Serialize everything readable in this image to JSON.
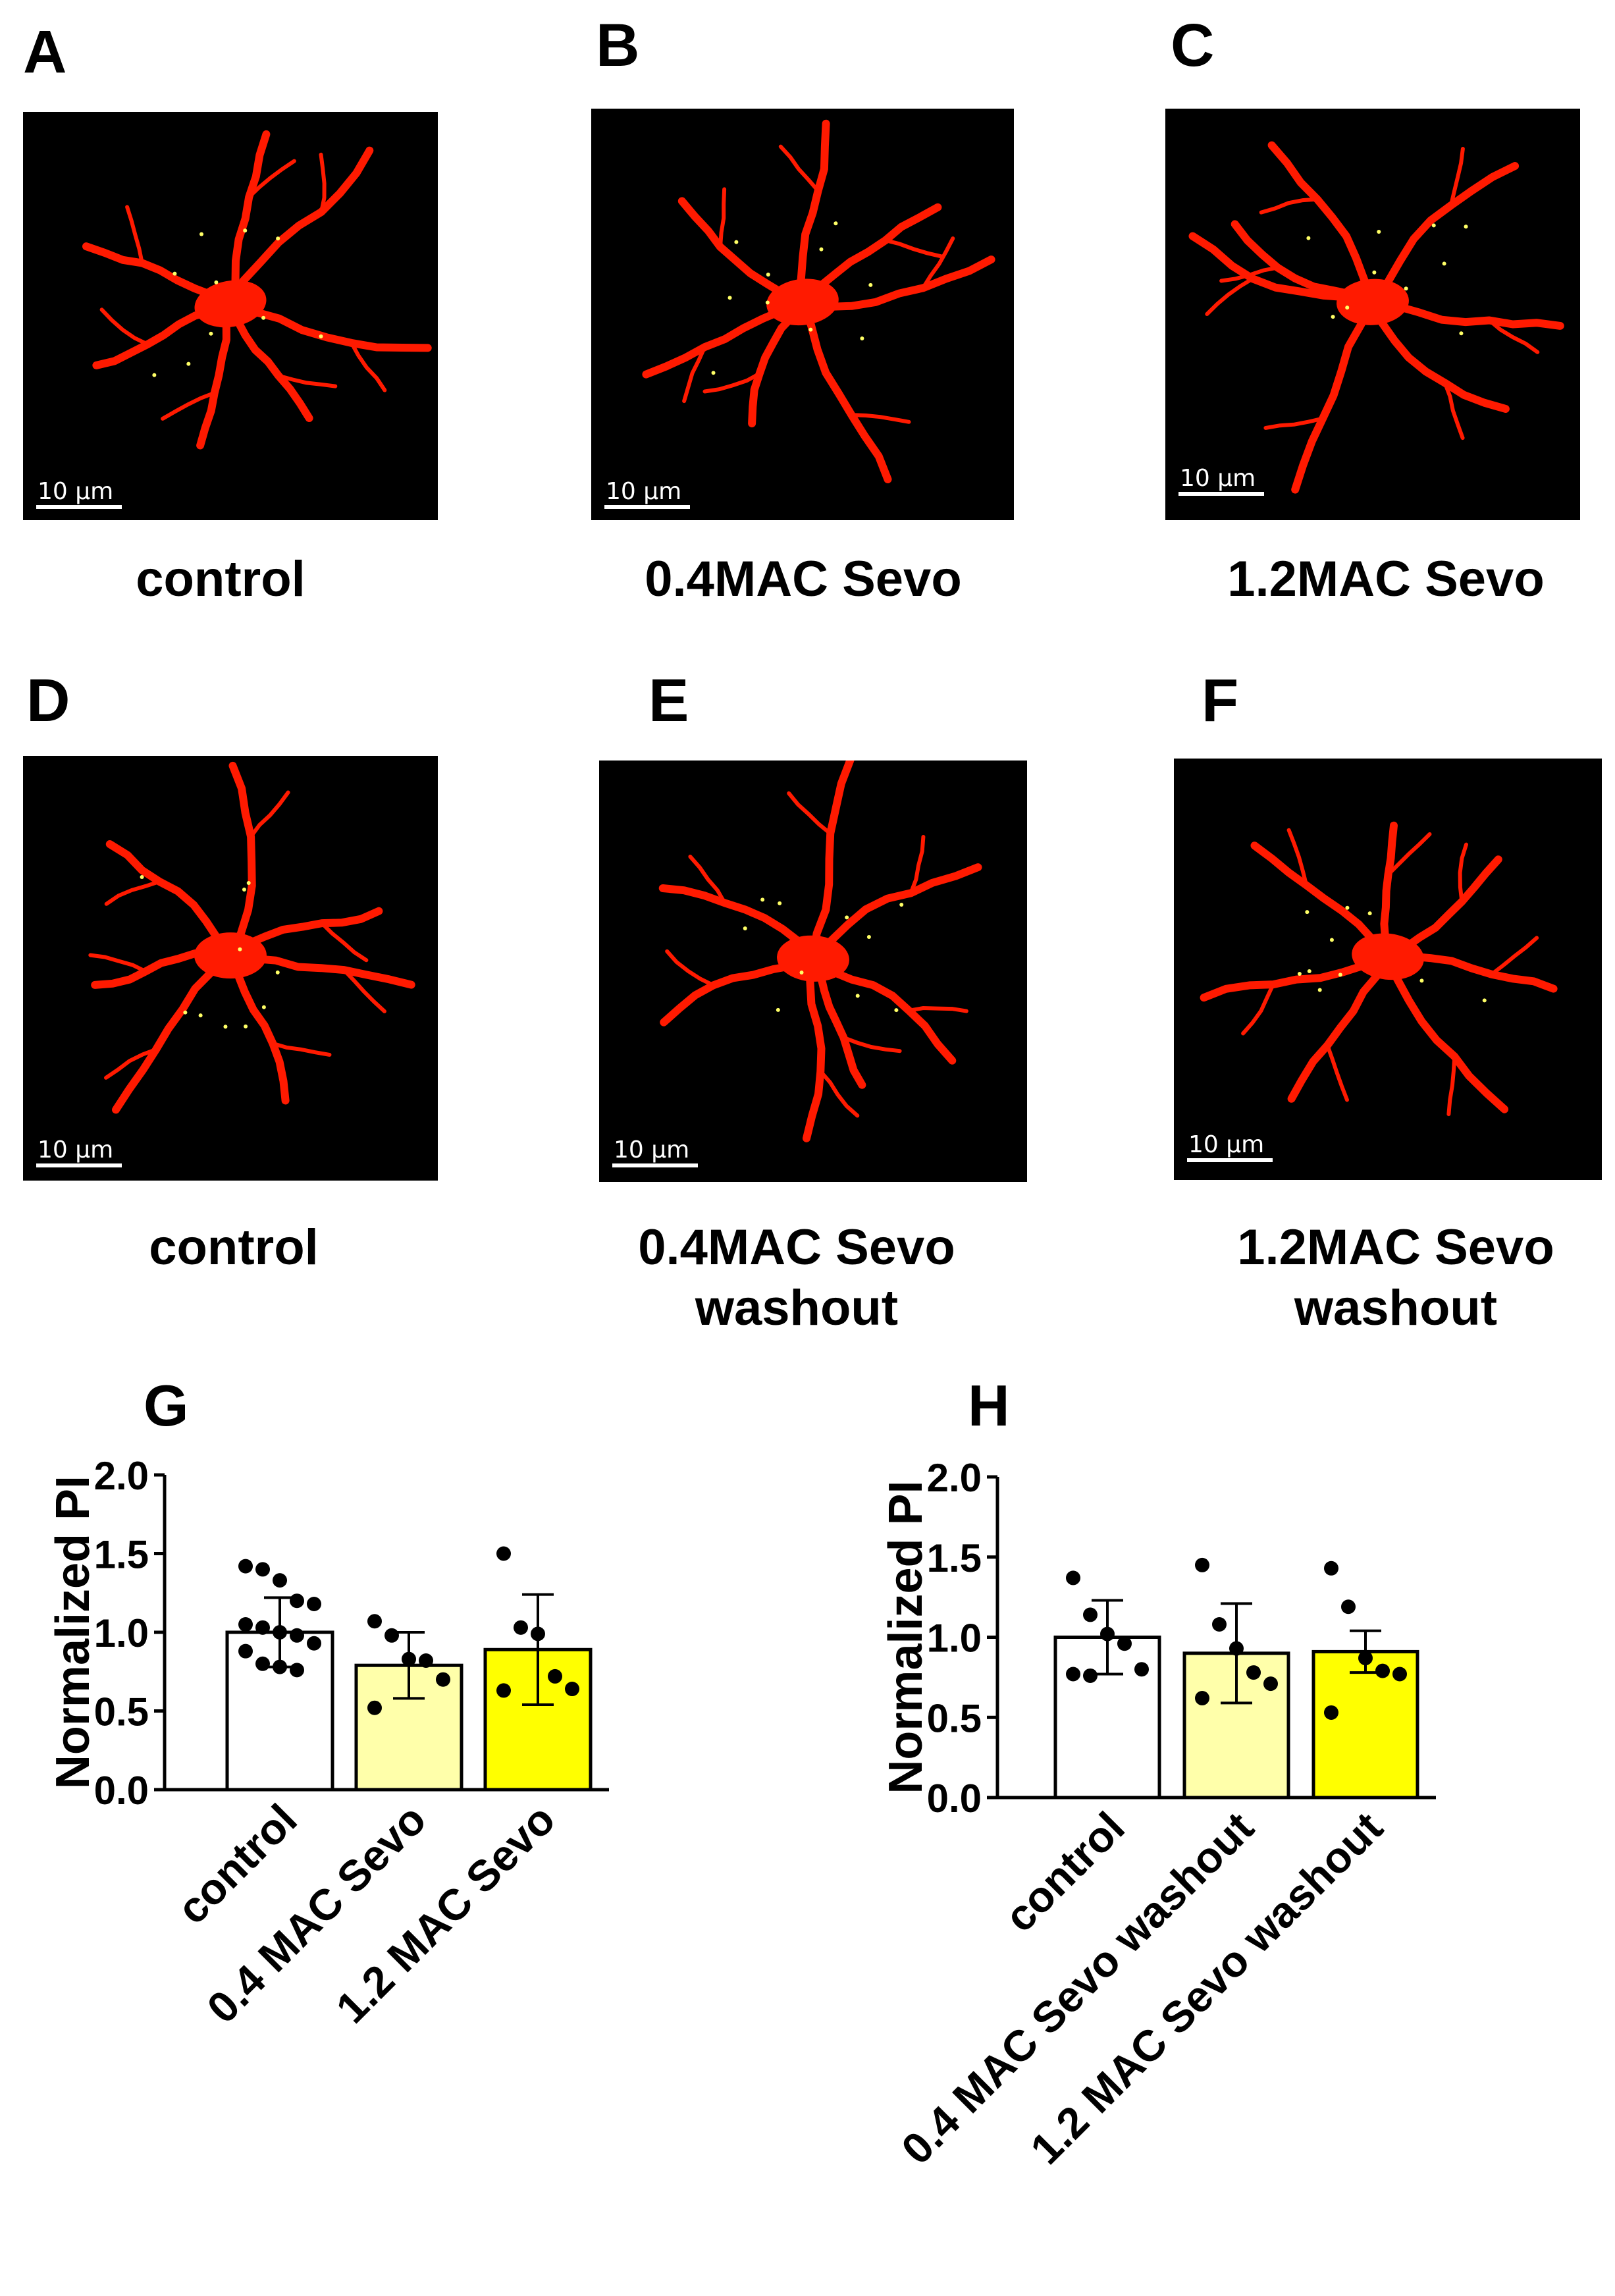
{
  "panels": [
    {
      "letter": "A",
      "label_lines": [
        "control"
      ],
      "scale_bar": "10 µm"
    },
    {
      "letter": "B",
      "label_lines": [
        "0.4MAC Sevo"
      ],
      "scale_bar": "10 µm"
    },
    {
      "letter": "C",
      "label_lines": [
        "1.2MAC Sevo"
      ],
      "scale_bar": "10 µm"
    },
    {
      "letter": "D",
      "label_lines": [
        "control"
      ],
      "scale_bar": "10 µm"
    },
    {
      "letter": "E",
      "label_lines": [
        "0.4MAC Sevo",
        "washout"
      ],
      "scale_bar": "10 µm"
    },
    {
      "letter": "F",
      "label_lines": [
        "1.2MAC Sevo",
        "washout"
      ],
      "scale_bar": "10 µm"
    }
  ],
  "colors": {
    "cell": "#ff1a00",
    "background": "#000000",
    "bar_control": "#ffffff",
    "bar_low": "#ffffaa",
    "bar_high": "#ffff00",
    "puncta": "#ffff66"
  },
  "chart_data": [
    {
      "panel": "G",
      "type": "bar",
      "ylabel": "Normalized PI",
      "ylim": [
        0,
        2.0
      ],
      "yticks": [
        "0.0",
        "0.5",
        "1.0",
        "1.5",
        "2.0"
      ],
      "categories": [
        "control",
        "0.4 MAC Sevo",
        "1.2 MAC Sevo"
      ],
      "values": [
        1.0,
        0.79,
        0.89
      ],
      "sd": [
        0.22,
        0.21,
        0.35
      ],
      "points": [
        [
          1.42,
          1.4,
          1.33,
          1.2,
          1.18,
          1.05,
          1.03,
          1.0,
          0.98,
          0.93,
          0.88,
          0.8,
          0.78,
          0.76
        ],
        [
          1.07,
          0.98,
          0.83,
          0.82,
          0.7,
          0.52
        ],
        [
          1.5,
          1.03,
          0.99,
          0.72,
          0.64,
          0.63
        ]
      ]
    },
    {
      "panel": "H",
      "type": "bar",
      "ylabel": "Normalized PI",
      "ylim": [
        0,
        2.0
      ],
      "yticks": [
        "0.0",
        "0.5",
        "1.0",
        "1.5",
        "2.0"
      ],
      "categories": [
        "control",
        "0.4 MAC Sevo  washout",
        "1.2 MAC Sevo  washout"
      ],
      "values": [
        1.0,
        0.9,
        0.91
      ],
      "sd": [
        0.23,
        0.31,
        0.13
      ],
      "points": [
        [
          1.37,
          1.14,
          1.02,
          0.96,
          0.8,
          0.77,
          0.76
        ],
        [
          1.45,
          1.08,
          0.93,
          0.78,
          0.71,
          0.62
        ],
        [
          1.43,
          1.19,
          0.87,
          0.79,
          0.77,
          0.53
        ]
      ]
    }
  ]
}
